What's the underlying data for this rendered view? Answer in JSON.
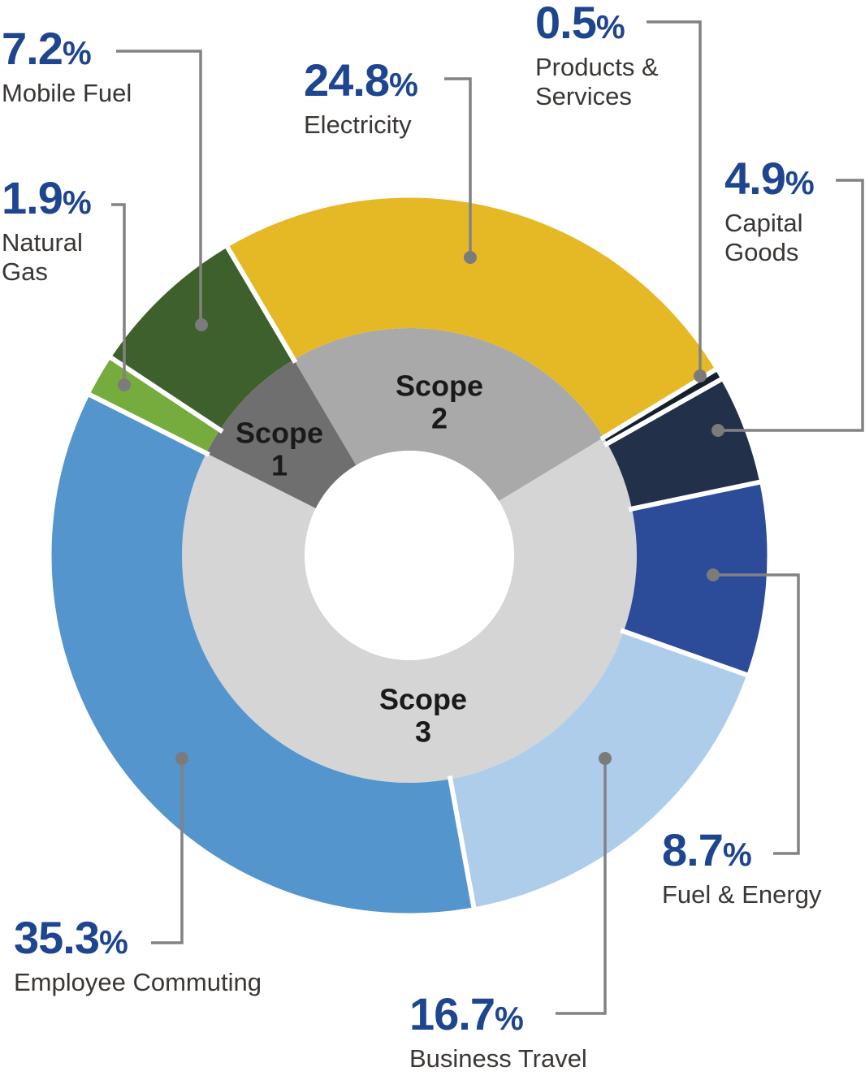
{
  "chart_data": {
    "type": "pie",
    "subtype": "two-ring-donut",
    "title": "",
    "units": "%",
    "direction": "clockwise",
    "start_angle_deg": -63.3,
    "legend": "none",
    "background": "#FFFFFF",
    "inner_ring": [
      {
        "label": "Scope 1",
        "value": 9.1,
        "color": "#6F6F6F"
      },
      {
        "label": "Scope 2",
        "value": 24.8,
        "color": "#A9A9A9"
      },
      {
        "label": "Scope 3",
        "value": 66.1,
        "color": "#D5D5D5"
      }
    ],
    "outer_ring": [
      {
        "label": "Natural Gas",
        "value": 1.9,
        "scope": "Scope 1",
        "color": "#76AC3D"
      },
      {
        "label": "Mobile Fuel",
        "value": 7.2,
        "scope": "Scope 1",
        "color": "#3D602C"
      },
      {
        "label": "Electricity",
        "value": 24.8,
        "scope": "Scope 2",
        "color": "#E5B926"
      },
      {
        "label": "Products & Services",
        "value": 0.5,
        "scope": "Scope 3",
        "color": "#161F2E"
      },
      {
        "label": "Capital Goods",
        "value": 4.9,
        "scope": "Scope 3",
        "color": "#22304A"
      },
      {
        "label": "Fuel & Energy",
        "value": 8.7,
        "scope": "Scope 3",
        "color": "#2C4B99"
      },
      {
        "label": "Business Travel",
        "value": 16.7,
        "scope": "Scope 3",
        "color": "#AECDEB"
      },
      {
        "label": "Employee Commuting",
        "value": 35.3,
        "scope": "Scope 3",
        "color": "#5495CE"
      }
    ]
  },
  "callouts": {
    "mobile_fuel": {
      "value": "7.2",
      "label": "Mobile Fuel"
    },
    "natural_gas": {
      "value": "1.9",
      "label": "Natural Gas"
    },
    "electricity": {
      "value": "24.8",
      "label": "Electricity"
    },
    "products_services": {
      "value": "0.5",
      "label": "Products & Services"
    },
    "capital_goods": {
      "value": "4.9",
      "label": "Capital Goods"
    },
    "fuel_energy": {
      "value": "8.7",
      "label": "Fuel & Energy"
    },
    "business_travel": {
      "value": "16.7",
      "label": "Business Travel"
    },
    "employee_commuting": {
      "value": "35.3",
      "label": "Employee Commuting"
    }
  },
  "scope_labels": {
    "scope1": "Scope 1",
    "scope2": "Scope 2",
    "scope3": "Scope 3"
  },
  "colors": {
    "value_text": "#1E4590",
    "label_text": "#3A3633",
    "scope_text": "#1A1A1A",
    "leader": "#828282",
    "leader_dot": "#7B7B7B",
    "separator": "#FFFFFF"
  }
}
